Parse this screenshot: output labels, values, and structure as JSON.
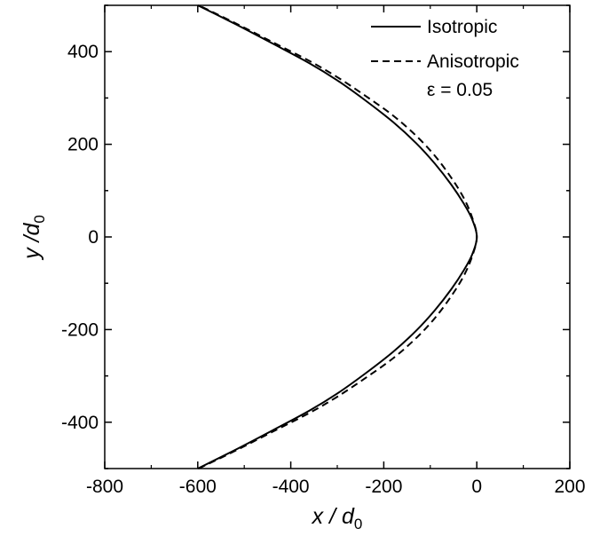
{
  "chart_data": {
    "type": "line",
    "xlabel": {
      "var": "x",
      "sep": " / ",
      "sym": "d",
      "sub": "0"
    },
    "ylabel": {
      "var": "y",
      "sep": " /",
      "sym": "d",
      "sub": "0"
    },
    "xlim": [
      -800,
      200
    ],
    "ylim": [
      -500,
      500
    ],
    "xticks": [
      -800,
      -600,
      -400,
      -200,
      0,
      200
    ],
    "yticks": [
      -400,
      -200,
      0,
      200,
      400
    ],
    "grid": false,
    "legend_position": "top-right",
    "annotation": "ε = 0.05",
    "series": [
      {
        "name": "Isotropic",
        "style": "solid",
        "color": "#000000",
        "points": [
          [
            -600,
            -500
          ],
          [
            -520,
            -460
          ],
          [
            -440,
            -418
          ],
          [
            -360,
            -375
          ],
          [
            -300,
            -338
          ],
          [
            -240,
            -295
          ],
          [
            -180,
            -248
          ],
          [
            -130,
            -202
          ],
          [
            -90,
            -158
          ],
          [
            -55,
            -113
          ],
          [
            -28,
            -72
          ],
          [
            -10,
            -38
          ],
          [
            0,
            0
          ],
          [
            -10,
            38
          ],
          [
            -28,
            72
          ],
          [
            -55,
            113
          ],
          [
            -90,
            158
          ],
          [
            -130,
            202
          ],
          [
            -180,
            248
          ],
          [
            -240,
            295
          ],
          [
            -300,
            338
          ],
          [
            -360,
            375
          ],
          [
            -440,
            418
          ],
          [
            -520,
            460
          ],
          [
            -600,
            500
          ]
        ]
      },
      {
        "name": "Anisotropic",
        "style": "dashed",
        "color": "#000000",
        "points": [
          [
            -598,
            -500
          ],
          [
            -520,
            -462
          ],
          [
            -440,
            -421
          ],
          [
            -360,
            -380
          ],
          [
            -300,
            -345
          ],
          [
            -240,
            -305
          ],
          [
            -180,
            -262
          ],
          [
            -130,
            -218
          ],
          [
            -90,
            -175
          ],
          [
            -55,
            -128
          ],
          [
            -28,
            -84
          ],
          [
            -10,
            -42
          ],
          [
            0,
            0
          ],
          [
            -10,
            42
          ],
          [
            -28,
            84
          ],
          [
            -55,
            128
          ],
          [
            -90,
            175
          ],
          [
            -130,
            218
          ],
          [
            -180,
            262
          ],
          [
            -240,
            305
          ],
          [
            -300,
            345
          ],
          [
            -360,
            380
          ],
          [
            -440,
            421
          ],
          [
            -520,
            462
          ],
          [
            -598,
            500
          ]
        ]
      }
    ]
  }
}
